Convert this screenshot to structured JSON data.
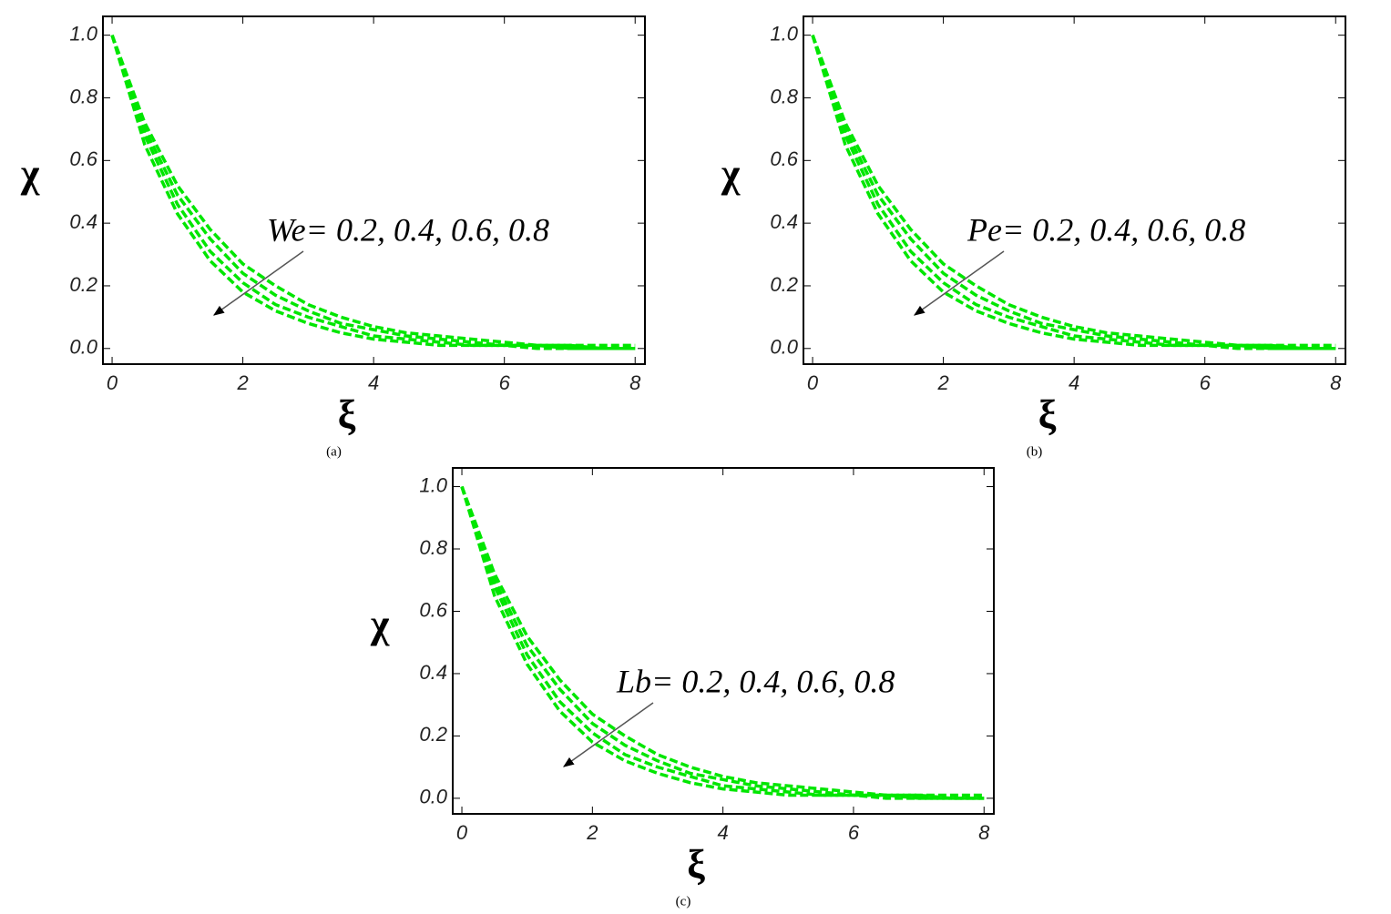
{
  "chart_data": [
    {
      "type": "line",
      "caption": "(a)",
      "xlabel": "ξ",
      "ylabel": "χ",
      "annotation": "We= 0.2, 0.4, 0.6, 0.8",
      "x": [
        0,
        0.5,
        1,
        1.5,
        2,
        2.5,
        3,
        3.5,
        4,
        4.5,
        5,
        5.5,
        6,
        6.5,
        7,
        7.5,
        8
      ],
      "series": [
        {
          "color": "#00e600",
          "values": [
            1,
            0.72,
            0.52,
            0.38,
            0.27,
            0.2,
            0.14,
            0.1,
            0.07,
            0.05,
            0.04,
            0.03,
            0.02,
            0.01,
            0.01,
            0.01,
            0.01
          ]
        },
        {
          "color": "#00e600",
          "values": [
            1,
            0.7,
            0.49,
            0.35,
            0.24,
            0.17,
            0.12,
            0.08,
            0.06,
            0.04,
            0.03,
            0.02,
            0.01,
            0.01,
            0.01,
            0,
            0
          ]
        },
        {
          "color": "#00e600",
          "values": [
            1,
            0.68,
            0.46,
            0.31,
            0.21,
            0.14,
            0.1,
            0.07,
            0.04,
            0.03,
            0.02,
            0.01,
            0.01,
            0.01,
            0,
            0,
            0
          ]
        },
        {
          "color": "#00e600",
          "values": [
            1,
            0.65,
            0.43,
            0.28,
            0.18,
            0.12,
            0.08,
            0.05,
            0.03,
            0.02,
            0.01,
            0.01,
            0.01,
            0,
            0,
            0,
            0
          ]
        }
      ],
      "xlim": [
        -0.14,
        8.15
      ],
      "ylim": [
        -0.05,
        1.06
      ],
      "xticks": [
        0,
        2,
        4,
        6,
        8
      ],
      "yticks": [
        {
          "value": 0,
          "label": "0.0"
        },
        {
          "value": 0.2,
          "label": "0.2"
        },
        {
          "value": 0.4,
          "label": "0.4"
        },
        {
          "value": 0.6,
          "label": "0.6"
        },
        {
          "value": 0.8,
          "label": "0.8"
        },
        {
          "value": 1,
          "label": "1.0"
        }
      ]
    },
    {
      "type": "line",
      "caption": "(b)",
      "xlabel": "ξ",
      "ylabel": "χ",
      "annotation": "Pe= 0.2, 0.4, 0.6, 0.8",
      "x": [
        0,
        0.5,
        1,
        1.5,
        2,
        2.5,
        3,
        3.5,
        4,
        4.5,
        5,
        5.5,
        6,
        6.5,
        7,
        7.5,
        8
      ],
      "series": [
        {
          "color": "#00e600",
          "values": [
            1,
            0.72,
            0.52,
            0.38,
            0.27,
            0.2,
            0.14,
            0.1,
            0.07,
            0.05,
            0.04,
            0.03,
            0.02,
            0.01,
            0.01,
            0.01,
            0.01
          ]
        },
        {
          "color": "#00e600",
          "values": [
            1,
            0.7,
            0.49,
            0.35,
            0.24,
            0.17,
            0.12,
            0.08,
            0.06,
            0.04,
            0.03,
            0.02,
            0.01,
            0.01,
            0.01,
            0,
            0
          ]
        },
        {
          "color": "#00e600",
          "values": [
            1,
            0.68,
            0.46,
            0.31,
            0.21,
            0.14,
            0.1,
            0.07,
            0.04,
            0.03,
            0.02,
            0.01,
            0.01,
            0.01,
            0,
            0,
            0
          ]
        },
        {
          "color": "#00e600",
          "values": [
            1,
            0.65,
            0.43,
            0.28,
            0.18,
            0.12,
            0.08,
            0.05,
            0.03,
            0.02,
            0.01,
            0.01,
            0.01,
            0,
            0,
            0,
            0
          ]
        }
      ],
      "xlim": [
        -0.14,
        8.15
      ],
      "ylim": [
        -0.05,
        1.06
      ],
      "xticks": [
        0,
        2,
        4,
        6,
        8
      ],
      "yticks": [
        {
          "value": 0,
          "label": "0.0"
        },
        {
          "value": 0.2,
          "label": "0.2"
        },
        {
          "value": 0.4,
          "label": "0.4"
        },
        {
          "value": 0.6,
          "label": "0.6"
        },
        {
          "value": 0.8,
          "label": "0.8"
        },
        {
          "value": 1,
          "label": "1.0"
        }
      ]
    },
    {
      "type": "line",
      "caption": "(c)",
      "xlabel": "ξ",
      "ylabel": "χ",
      "annotation": "Lb= 0.2, 0.4, 0.6, 0.8",
      "x": [
        0,
        0.5,
        1,
        1.5,
        2,
        2.5,
        3,
        3.5,
        4,
        4.5,
        5,
        5.5,
        6,
        6.5,
        7,
        7.5,
        8
      ],
      "series": [
        {
          "color": "#00e600",
          "values": [
            1,
            0.72,
            0.52,
            0.38,
            0.27,
            0.2,
            0.14,
            0.1,
            0.07,
            0.05,
            0.04,
            0.03,
            0.02,
            0.01,
            0.01,
            0.01,
            0.01
          ]
        },
        {
          "color": "#00e600",
          "values": [
            1,
            0.7,
            0.49,
            0.35,
            0.24,
            0.17,
            0.12,
            0.08,
            0.06,
            0.04,
            0.03,
            0.02,
            0.01,
            0.01,
            0.01,
            0,
            0
          ]
        },
        {
          "color": "#00e600",
          "values": [
            1,
            0.68,
            0.46,
            0.31,
            0.21,
            0.14,
            0.1,
            0.07,
            0.04,
            0.03,
            0.02,
            0.01,
            0.01,
            0.01,
            0,
            0,
            0
          ]
        },
        {
          "color": "#00e600",
          "values": [
            1,
            0.65,
            0.43,
            0.28,
            0.18,
            0.12,
            0.08,
            0.05,
            0.03,
            0.02,
            0.01,
            0.01,
            0.01,
            0,
            0,
            0,
            0
          ]
        }
      ],
      "xlim": [
        -0.14,
        8.15
      ],
      "ylim": [
        -0.05,
        1.06
      ],
      "xticks": [
        0,
        2,
        4,
        6,
        8
      ],
      "yticks": [
        {
          "value": 0,
          "label": "0.0"
        },
        {
          "value": 0.2,
          "label": "0.2"
        },
        {
          "value": 0.4,
          "label": "0.4"
        },
        {
          "value": 0.6,
          "label": "0.6"
        },
        {
          "value": 0.8,
          "label": "0.8"
        },
        {
          "value": 1,
          "label": "1.0"
        }
      ]
    }
  ]
}
